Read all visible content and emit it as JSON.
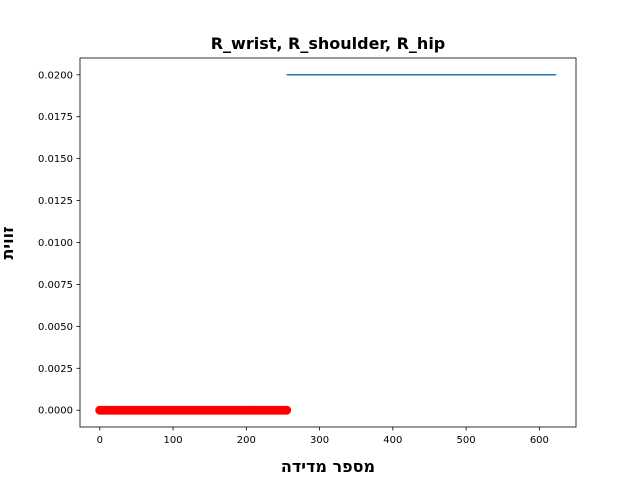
{
  "chart_data": {
    "type": "line",
    "title": "R_wrist, R_shoulder, R_hip",
    "xlabel": "מספר מדידה",
    "ylabel": "זווית",
    "xlim": [
      -27,
      650
    ],
    "ylim": [
      -0.001,
      0.021
    ],
    "xticks": [
      0,
      100,
      200,
      300,
      400,
      500,
      600
    ],
    "xtick_labels": [
      "0",
      "100",
      "200",
      "300",
      "400",
      "500",
      "600"
    ],
    "yticks": [
      0.0,
      0.0025,
      0.005,
      0.0075,
      0.01,
      0.0125,
      0.015,
      0.0175,
      0.02
    ],
    "ytick_labels": [
      "0.0000",
      "0.0025",
      "0.0050",
      "0.0075",
      "0.0100",
      "0.0125",
      "0.0150",
      "0.0175",
      "0.0200"
    ],
    "grid": false,
    "series": [
      {
        "kind": "line",
        "color": "#1f77b4",
        "x": [
          255,
          623
        ],
        "y": [
          0.02,
          0.02
        ]
      },
      {
        "kind": "markers",
        "color": "#ff0000",
        "x_start": 0,
        "x_end": 255,
        "x_step": 3,
        "y": 0.0
      }
    ]
  }
}
